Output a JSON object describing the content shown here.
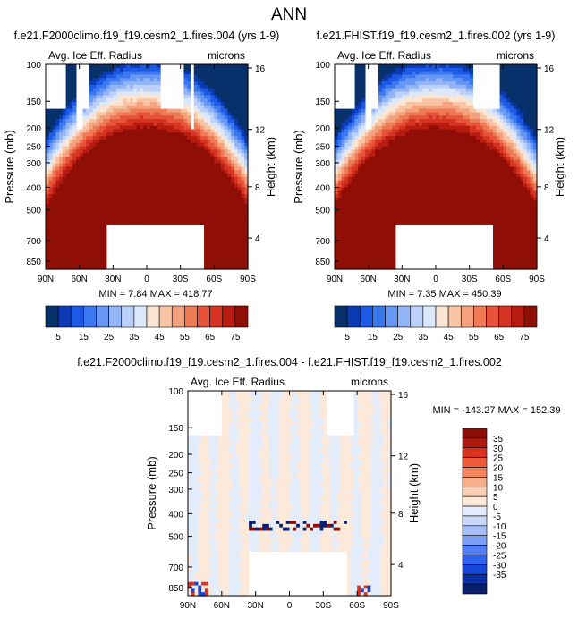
{
  "page_title": "ANN",
  "colors": {
    "pos_scale": [
      "#08306b",
      "#0a3bb5",
      "#1c5ae6",
      "#3b78f0",
      "#6797f5",
      "#93b4f7",
      "#bcd1fa",
      "#dbe8fb",
      "#fbe6d4",
      "#f9c4a4",
      "#f4a27e",
      "#ee7b55",
      "#e6533a",
      "#d63423",
      "#b81b10",
      "#8f0f07"
    ],
    "diff_scale": [
      "#08206e",
      "#0a2fa6",
      "#1546d8",
      "#2f62ee",
      "#547ff4",
      "#7e9ff6",
      "#a6bef8",
      "#c8d8fa",
      "#e2ecfb",
      "#fde9da",
      "#fbcfb3",
      "#f8ae88",
      "#f4865e",
      "#ec5b3a",
      "#d9321f",
      "#b01a0e",
      "#8a0e06"
    ],
    "missing": "#ffffff"
  },
  "chart_data": [
    {
      "type": "heatmap",
      "title": "f.e21.F2000climo.f19_f19.cesm2_1.fires.004 (yrs 1-9)",
      "variable_label": "Avg. Ice Eff. Radius",
      "units": "microns",
      "ylabel": "Pressure (mb)",
      "y2label": "Height (km)",
      "x_ticks": [
        "90N",
        "60N",
        "30N",
        "0",
        "30S",
        "60S",
        "90S"
      ],
      "y_ticks": [
        "100",
        "150",
        "200",
        "250",
        "300",
        "400",
        "500",
        "700",
        "850"
      ],
      "y2_ticks": [
        "16",
        "12",
        "8",
        "4"
      ],
      "stats": "MIN =  7.84  MAX = 418.77",
      "colorbar_labels": [
        "5",
        "15",
        "25",
        "35",
        "45",
        "55",
        "65",
        "75"
      ],
      "top_gaps": [
        [
          -90,
          -72
        ],
        [
          -64,
          -50
        ],
        [
          12,
          32
        ],
        [
          38,
          40
        ]
      ],
      "bottom_gap": [
        -35,
        52
      ],
      "colorbar_orientation": "horizontal"
    },
    {
      "type": "heatmap",
      "title": "f.e21.FHIST.f19_f19.cesm2_1.fires.002 (yrs 1-9)",
      "variable_label": "Avg. Ice Eff. Radius",
      "units": "microns",
      "ylabel": "Pressure (mb)",
      "y2label": "Height (km)",
      "x_ticks": [
        "90N",
        "60N",
        "30N",
        "0",
        "30S",
        "60S",
        "90S"
      ],
      "y_ticks": [
        "100",
        "150",
        "200",
        "250",
        "300",
        "400",
        "500",
        "700",
        "850"
      ],
      "y2_ticks": [
        "16",
        "12",
        "8",
        "4"
      ],
      "stats": "MIN =  7.35  MAX = 450.39",
      "colorbar_labels": [
        "5",
        "15",
        "25",
        "35",
        "45",
        "55",
        "65",
        "75"
      ],
      "top_gaps": [
        [
          -90,
          -72
        ],
        [
          -64,
          -50
        ],
        [
          32,
          58
        ]
      ],
      "bottom_gap": [
        -35,
        52
      ],
      "colorbar_orientation": "horizontal"
    },
    {
      "type": "heatmap",
      "title": "f.e21.F2000climo.f19_f19.cesm2_1.fires.004 - f.e21.FHIST.f19_f19.cesm2_1.fires.002",
      "variable_label": "Avg. Ice Eff. Radius",
      "units": "microns",
      "ylabel": "Pressure (mb)",
      "y2label": "Height (km)",
      "x_ticks": [
        "90N",
        "60N",
        "30N",
        "0",
        "30S",
        "60S",
        "90S"
      ],
      "y_ticks": [
        "100",
        "150",
        "200",
        "250",
        "300",
        "400",
        "500",
        "700",
        "850"
      ],
      "y2_ticks": [
        "16",
        "12",
        "8",
        "4"
      ],
      "stats": "MIN = -143.27  MAX = 152.39",
      "colorbar_labels": [
        "35",
        "30",
        "25",
        "20",
        "15",
        "10",
        "5",
        "0",
        "-5",
        "-10",
        "-15",
        "-20",
        "-25",
        "-30",
        "-35"
      ],
      "top_gaps": [
        [
          -90,
          -60
        ],
        [
          32,
          58
        ]
      ],
      "bottom_gap": [
        -35,
        52
      ],
      "colorbar_orientation": "vertical"
    }
  ]
}
